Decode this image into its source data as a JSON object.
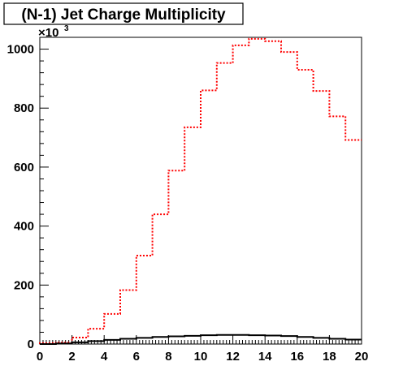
{
  "chart_data": {
    "type": "histogram",
    "title": "(N-1) Jet Charge Multiplicity",
    "xlabel": "",
    "ylabel": "",
    "xlim": [
      0,
      20
    ],
    "ylim": [
      0,
      1040
    ],
    "y_multiplier_label": "×10",
    "y_multiplier_exponent": "3",
    "x_ticks": [
      0,
      2,
      4,
      6,
      8,
      10,
      12,
      14,
      16,
      18,
      20
    ],
    "y_ticks": [
      0,
      200,
      400,
      600,
      800,
      1000
    ],
    "bin_edges": [
      0,
      1,
      2,
      3,
      4,
      5,
      6,
      7,
      8,
      9,
      10,
      11,
      12,
      13,
      14,
      15,
      16,
      17,
      18,
      19,
      20
    ],
    "series": [
      {
        "line_style": "dotted",
        "color": "#ff0000",
        "values": [
          3,
          5,
          22,
          52,
          102,
          183,
          300,
          440,
          588,
          735,
          860,
          953,
          1013,
          1035,
          1027,
          990,
          930,
          858,
          772,
          692
        ]
      },
      {
        "line_style": "solid",
        "color": "#000000",
        "values": [
          0,
          2,
          6,
          10,
          14,
          18,
          21,
          24,
          26,
          28,
          30,
          31,
          31,
          30,
          29,
          27,
          24,
          21,
          18,
          15
        ]
      }
    ],
    "grid": false,
    "legend": "none"
  }
}
